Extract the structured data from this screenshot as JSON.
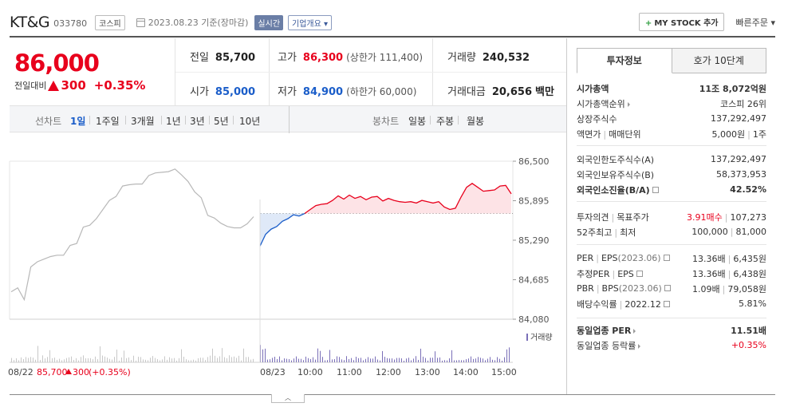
{
  "header": {
    "company_name": "KT&G",
    "code": "033780",
    "market": "코스피",
    "date": "2023.08.23",
    "basis": "기준(장마감)",
    "realtime_label": "실시간",
    "company_info_label": "기업개요",
    "mystock_label": "MY STOCK 추가",
    "quick_order_label": "빠른주문"
  },
  "price": {
    "current": "86,000",
    "change_label": "전일대비",
    "change": "300",
    "change_pct": "+0.35%"
  },
  "stats": {
    "prev_close_label": "전일",
    "prev_close": "85,700",
    "high_label": "고가",
    "high": "86,300",
    "high_limit": "(상한가 111,400)",
    "volume_label": "거래량",
    "volume": "240,532",
    "open_label": "시가",
    "open": "85,000",
    "low_label": "저가",
    "low": "84,900",
    "low_limit": "(하한가 60,000)",
    "amount_label": "거래대금",
    "amount": "20,656",
    "amount_unit": "백만"
  },
  "range_bar": {
    "line_chart_label": "선차트",
    "ranges": [
      "1일",
      "1주일",
      "3개월",
      "1년",
      "3년",
      "5년",
      "10년"
    ],
    "active_range": "1일",
    "candle_label": "봉차트",
    "candles": [
      "일봉",
      "주봉",
      "월봉"
    ]
  },
  "chart_data": {
    "type": "line",
    "y_ticks": [
      "86,500",
      "85,895",
      "85,290",
      "84,685",
      "84,080"
    ],
    "ylim": [
      84080,
      86500
    ],
    "baseline": 85700,
    "x_labels": [
      "08/22",
      "08/23",
      "10:00",
      "11:00",
      "12:00",
      "13:00",
      "14:00",
      "15:00"
    ],
    "volume_label": "거래량",
    "prev_day_summary": {
      "date": "08/22",
      "price": "85,700",
      "change": "300",
      "change_pct": "(+0.35%)"
    },
    "prev_day_series": [
      84500,
      84560,
      84380,
      84880,
      84960,
      85000,
      85040,
      85060,
      85060,
      85210,
      85240,
      85490,
      85520,
      85620,
      85760,
      85900,
      85960,
      86120,
      86140,
      86150,
      86150,
      86280,
      86320,
      86330,
      86340,
      86380,
      86290,
      86190,
      86030,
      85940,
      85670,
      85630,
      85550,
      85500,
      85480,
      85480,
      85540,
      85650
    ],
    "today_series": [
      85200,
      85380,
      85460,
      85500,
      85580,
      85620,
      85680,
      85660,
      85700,
      85760,
      85820,
      85840,
      85850,
      85900,
      85970,
      85920,
      85980,
      85930,
      85960,
      85910,
      85950,
      85960,
      85890,
      85930,
      85900,
      85880,
      85870,
      85880,
      85860,
      85900,
      85880,
      85860,
      85880,
      85800,
      85760,
      85780,
      85950,
      86100,
      86160,
      86100,
      86040,
      86050,
      86060,
      86120,
      86130,
      86000
    ]
  },
  "right_panel": {
    "tabs": [
      "투자정보",
      "호가 10단계"
    ],
    "active_tab": "투자정보",
    "market_cap_label": "시가총액",
    "market_cap": "11조 8,072억원",
    "market_cap_rank_label": "시가총액순위",
    "market_cap_rank": "코스피 26위",
    "shares_label": "상장주식수",
    "shares": "137,292,497",
    "par_label": "액면가",
    "unit_label": "매매단위",
    "par": "5,000원",
    "unit": "1주",
    "foreign_limit_label": "외국인한도주식수(A)",
    "foreign_limit": "137,292,497",
    "foreign_hold_label": "외국인보유주식수(B)",
    "foreign_hold": "58,373,953",
    "foreign_ratio_label": "외국인소진율(B/A)",
    "foreign_ratio": "42.52%",
    "opinion_label": "투자의견",
    "target_label": "목표주가",
    "opinion": "3.91매수",
    "target": "107,273",
    "week52_high_label": "52주최고",
    "week52_low_label": "최저",
    "week52_high": "100,000",
    "week52_low": "81,000",
    "per_label": "PER",
    "eps_label": "EPS",
    "per_eps_date": "(2023.06)",
    "per": "13.36배",
    "eps": "6,435원",
    "est_per_label": "추정PER",
    "est_eps_label": "EPS",
    "est_per": "13.36배",
    "est_eps": "6,438원",
    "pbr_label": "PBR",
    "bps_label": "BPS",
    "pbr_bps_date": "(2023.06)",
    "pbr": "1.09배",
    "bps": "79,058원",
    "dividend_label": "배당수익률",
    "dividend_date": "2022.12",
    "dividend": "5.81%",
    "industry_per_label": "동일업종 PER",
    "industry_per": "11.51배",
    "industry_change_label": "동일업종 등락률",
    "industry_change": "+0.35%"
  },
  "colors": {
    "up": "#e8001c",
    "down": "#1a5dc9",
    "prev_line": "#b8b8b8",
    "volume_today": "#7a6fb8"
  }
}
